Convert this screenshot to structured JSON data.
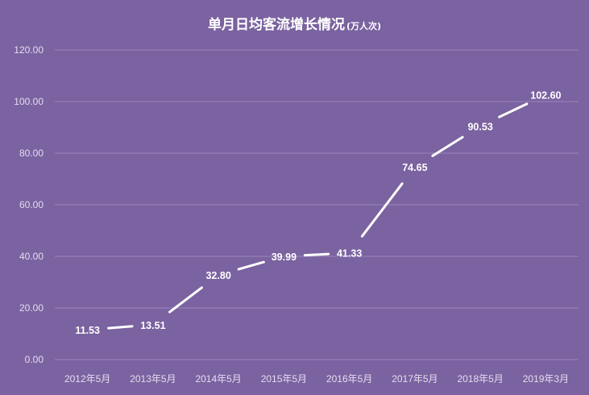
{
  "chart_data": {
    "type": "line",
    "title": "单月日均客流增长情况",
    "unit": "(万人次)",
    "categories": [
      "2012年5月",
      "2013年5月",
      "2014年5月",
      "2015年5月",
      "2016年5月",
      "2017年5月",
      "2018年5月",
      "2019年3月"
    ],
    "series": [
      {
        "values": [
          11.53,
          13.51,
          32.8,
          39.99,
          41.33,
          74.65,
          90.53,
          102.6
        ]
      }
    ],
    "data_labels": [
      "11.53",
      "13.51",
      "32.80",
      "39.99",
      "41.33",
      "74.65",
      "90.53",
      "102.60"
    ],
    "yticks": [
      "0.00",
      "20.00",
      "40.00",
      "60.00",
      "80.00",
      "100.00",
      "120.00"
    ],
    "ylim": [
      0,
      120
    ],
    "grid": true,
    "colors": {
      "background": "#7b62a0",
      "line": "#ffffff",
      "grid": "#9a85bb",
      "tick_text": "#e6ddf0"
    }
  }
}
